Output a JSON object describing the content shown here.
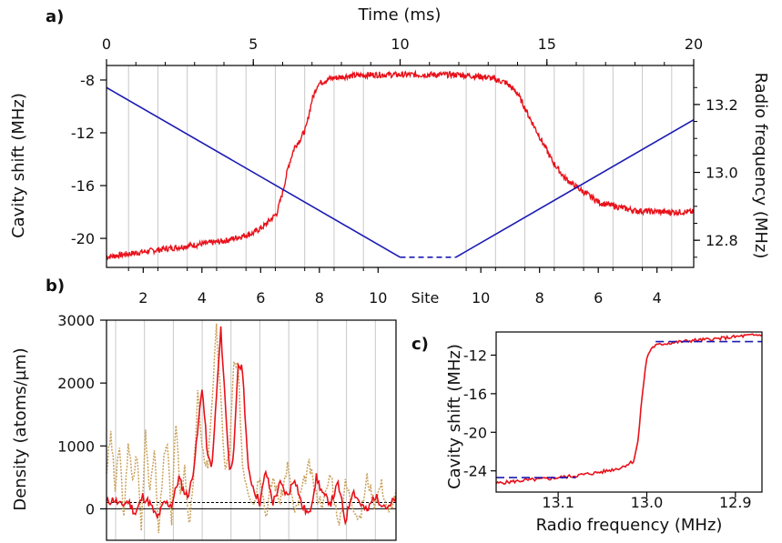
{
  "panels": {
    "a": {
      "panel_label": "a)",
      "chart_data": {
        "type": "line",
        "xlabel_top": "Time (ms)",
        "xticks_top": [
          0,
          5,
          10,
          15,
          20
        ],
        "xlim": [
          0,
          20
        ],
        "ylabel_left": "Cavity shift (MHz)",
        "yticks_left": [
          -8,
          -12,
          -16,
          -20
        ],
        "ylim_left": [
          -22.2,
          -6.9
        ],
        "ylabel_right": "Radio frequency (MHz)",
        "yticks_right": [
          "13.2",
          "13.0",
          "12.8"
        ],
        "ylim_right": [
          12.72,
          13.315
        ],
        "site_label": "Site",
        "site_ticks": [
          "2",
          "4",
          "6",
          "8",
          "10",
          "10",
          "8",
          "6",
          "4"
        ],
        "grid": true,
        "series": [
          {
            "name": "",
            "color": "#e8111a",
            "axis": "left",
            "x": [
              0,
              1,
              2,
              3,
              4,
              5,
              5.4,
              5.8,
              6.0,
              6.2,
              6.4,
              6.6,
              6.8,
              7.0,
              7.2,
              7.6,
              8.2,
              9,
              10,
              11,
              12,
              13,
              13.6,
              14.0,
              14.4,
              14.8,
              15.2,
              15.6,
              16.0,
              16.4,
              16.8,
              17.4,
              18,
              19,
              20
            ],
            "values": [
              -21.4,
              -21.1,
              -20.8,
              -20.5,
              -20.2,
              -19.6,
              -19.0,
              -18.1,
              -16.5,
              -14.5,
              -13.1,
              -12.5,
              -11.6,
              -9.5,
              -8.3,
              -7.9,
              -7.7,
              -7.6,
              -7.6,
              -7.6,
              -7.6,
              -7.8,
              -8.2,
              -9.0,
              -10.8,
              -12.5,
              -14.2,
              -15.4,
              -16.1,
              -16.7,
              -17.3,
              -17.6,
              -17.9,
              -18.0,
              -18.0
            ]
          },
          {
            "name": "",
            "color": "#1a1ab4",
            "axis": "right",
            "x": [
              0,
              10,
              11.9,
              20
            ],
            "values": [
              13.25,
              12.75,
              12.75,
              13.155
            ],
            "dashed_between": [
              10,
              11.9
            ]
          }
        ]
      }
    },
    "b": {
      "panel_label": "b)",
      "chart_data": {
        "type": "line",
        "ylabel": "Density (atoms/µm)",
        "yticks": [
          3000,
          2000,
          1000,
          0
        ],
        "ylim": [
          -500,
          3000
        ],
        "grid": true,
        "reference_line": 100,
        "series": [
          {
            "name": "",
            "color": "#e8111a",
            "x": [
              0,
              0.5,
              1,
              1.5,
              2,
              2.5,
              3,
              3.5,
              4,
              4.5,
              5,
              5.3,
              5.6,
              5.9,
              6.2,
              6.6,
              7.0,
              7.3,
              7.6,
              7.9,
              8.2,
              8.5,
              8.8,
              9.1,
              9.4,
              9.8,
              10.2,
              10.6,
              11,
              11.5,
              12,
              12.5,
              13,
              13.5,
              14,
              14.5,
              15,
              15.5,
              16,
              16.5,
              17,
              17.5,
              18,
              18.5,
              19,
              19.5,
              20
            ],
            "values": [
              100,
              150,
              50,
              120,
              -80,
              200,
              80,
              -150,
              100,
              60,
              500,
              300,
              200,
              450,
              1000,
              1950,
              800,
              700,
              1800,
              2850,
              1700,
              600,
              900,
              2300,
              2200,
              600,
              300,
              100,
              600,
              100,
              400,
              200,
              500,
              50,
              -100,
              500,
              200,
              100,
              400,
              -200,
              300,
              100,
              -50,
              200,
              100,
              0,
              200
            ]
          },
          {
            "name": "",
            "color": "#c9a15a",
            "dashed": true,
            "x": [
              0,
              0.3,
              0.6,
              0.9,
              1.2,
              1.5,
              1.8,
              2.1,
              2.4,
              2.7,
              3.0,
              3.3,
              3.6,
              3.9,
              4.2,
              4.5,
              4.8,
              5.1,
              5.4,
              5.7,
              6.0,
              6.3,
              6.6,
              7.0,
              7.3,
              7.6,
              7.9,
              8.2,
              8.5,
              8.8,
              9.1,
              9.4,
              9.8,
              10.2,
              10.6,
              11,
              11.5,
              12,
              12.5,
              13,
              13.5,
              14,
              14.5,
              15,
              15.5,
              16,
              16.5,
              17,
              17.5,
              18,
              18.5,
              19,
              19.5,
              20
            ],
            "values": [
              600,
              1200,
              300,
              1000,
              -200,
              1100,
              400,
              900,
              -300,
              1300,
              200,
              1000,
              -400,
              700,
              1000,
              -200,
              1400,
              300,
              600,
              -300,
              400,
              1900,
              900,
              700,
              1800,
              2850,
              1700,
              600,
              900,
              2300,
              2200,
              700,
              300,
              100,
              600,
              -100,
              500,
              100,
              700,
              -100,
              300,
              700,
              200,
              100,
              600,
              -300,
              400,
              100,
              -200,
              500,
              100,
              400,
              -100,
              300
            ]
          }
        ]
      }
    },
    "c": {
      "panel_label": "c)",
      "chart_data": {
        "type": "line",
        "xlabel": "Radio frequency (MHz)",
        "ylabel": "Cavity shift (MHz)",
        "xticks": [
          "13.1",
          "13.0",
          "12.9"
        ],
        "xlim": [
          13.17,
          12.87
        ],
        "yticks": [
          -12,
          -16,
          -20,
          -24
        ],
        "ylim": [
          -26.2,
          -9.6
        ],
        "series": [
          {
            "name": "",
            "color": "#e8111a",
            "x": [
              13.17,
              13.14,
              13.11,
              13.08,
              13.05,
              13.03,
              13.015,
              13.01,
              13.005,
              13.0,
              12.995,
              12.99,
              12.98,
              12.95,
              12.92,
              12.89,
              12.87
            ],
            "values": [
              -25.3,
              -25.0,
              -24.8,
              -24.5,
              -24.1,
              -23.7,
              -23.0,
              -21.0,
              -16.0,
              -12.3,
              -11.3,
              -11.0,
              -10.8,
              -10.5,
              -10.3,
              -10.0,
              -9.9
            ]
          },
          {
            "name": "",
            "color": "#1a1ab4",
            "dashed": true,
            "x": [
              13.17,
              13.08
            ],
            "values": [
              -24.7,
              -24.7
            ]
          },
          {
            "name": "",
            "color": "#1a1ab4",
            "dashed": true,
            "x": [
              12.99,
              12.87
            ],
            "values": [
              -10.6,
              -10.6
            ]
          }
        ]
      }
    }
  }
}
